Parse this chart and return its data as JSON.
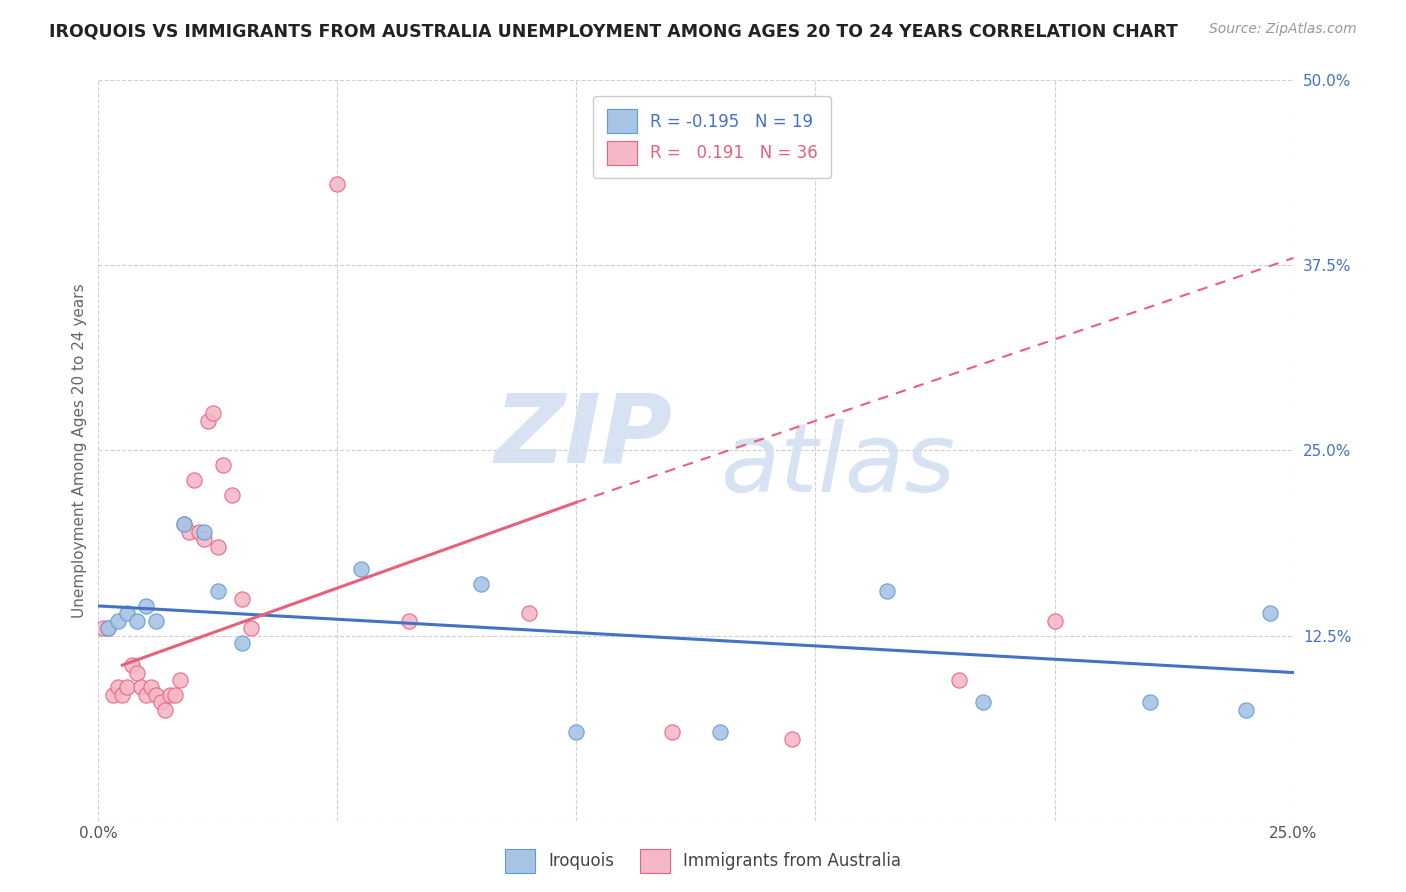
{
  "title": "IROQUOIS VS IMMIGRANTS FROM AUSTRALIA UNEMPLOYMENT AMONG AGES 20 TO 24 YEARS CORRELATION CHART",
  "source": "Source: ZipAtlas.com",
  "ylabel": "Unemployment Among Ages 20 to 24 years",
  "xlim": [
    0.0,
    0.25
  ],
  "ylim": [
    0.0,
    0.5
  ],
  "xticks": [
    0.0,
    0.05,
    0.1,
    0.15,
    0.2,
    0.25
  ],
  "xtick_labels": [
    "0.0%",
    "",
    "",
    "",
    "",
    "25.0%"
  ],
  "yticks_right": [
    0.0,
    0.125,
    0.25,
    0.375,
    0.5
  ],
  "ytick_labels_right": [
    "",
    "12.5%",
    "25.0%",
    "37.5%",
    "50.0%"
  ],
  "legend_blue_label": "R = -0.195   N = 19",
  "legend_pink_label": "R =   0.191   N = 36",
  "blue_scatter_color": "#a8c4e5",
  "blue_edge_color": "#5b9bd5",
  "pink_scatter_color": "#f4b8c8",
  "pink_edge_color": "#e8607a",
  "blue_line_color": "#4472c4",
  "pink_line_color": "#e8607a",
  "watermark_color": "#d0dff0",
  "background_color": "#ffffff",
  "grid_color": "#d0d0d0",
  "blue_scatter_x": [
    0.002,
    0.004,
    0.006,
    0.008,
    0.01,
    0.012,
    0.018,
    0.022,
    0.025,
    0.03,
    0.055,
    0.08,
    0.1,
    0.13,
    0.165,
    0.185,
    0.22,
    0.24,
    0.245
  ],
  "blue_scatter_y": [
    0.13,
    0.135,
    0.14,
    0.135,
    0.145,
    0.135,
    0.2,
    0.195,
    0.155,
    0.12,
    0.17,
    0.16,
    0.06,
    0.06,
    0.155,
    0.08,
    0.08,
    0.075,
    0.14
  ],
  "pink_scatter_x": [
    0.001,
    0.002,
    0.003,
    0.004,
    0.005,
    0.006,
    0.007,
    0.008,
    0.009,
    0.01,
    0.011,
    0.012,
    0.013,
    0.014,
    0.015,
    0.016,
    0.017,
    0.018,
    0.019,
    0.02,
    0.021,
    0.022,
    0.023,
    0.024,
    0.025,
    0.026,
    0.028,
    0.03,
    0.032,
    0.05,
    0.065,
    0.09,
    0.12,
    0.145,
    0.18,
    0.2
  ],
  "pink_scatter_y": [
    0.13,
    0.13,
    0.085,
    0.09,
    0.085,
    0.09,
    0.105,
    0.1,
    0.09,
    0.085,
    0.09,
    0.085,
    0.08,
    0.075,
    0.085,
    0.085,
    0.095,
    0.2,
    0.195,
    0.23,
    0.195,
    0.19,
    0.27,
    0.275,
    0.185,
    0.24,
    0.22,
    0.15,
    0.13,
    0.43,
    0.135,
    0.14,
    0.06,
    0.055,
    0.095,
    0.135
  ],
  "blue_line_x0": 0.0,
  "blue_line_y0": 0.145,
  "blue_line_x1": 0.25,
  "blue_line_y1": 0.1,
  "pink_line_solid_x0": 0.005,
  "pink_line_solid_y0": 0.105,
  "pink_line_solid_x1": 0.1,
  "pink_line_solid_y1": 0.215,
  "pink_line_dash_x0": 0.1,
  "pink_line_dash_y0": 0.215,
  "pink_line_dash_x1": 0.25,
  "pink_line_dash_y1": 0.38
}
